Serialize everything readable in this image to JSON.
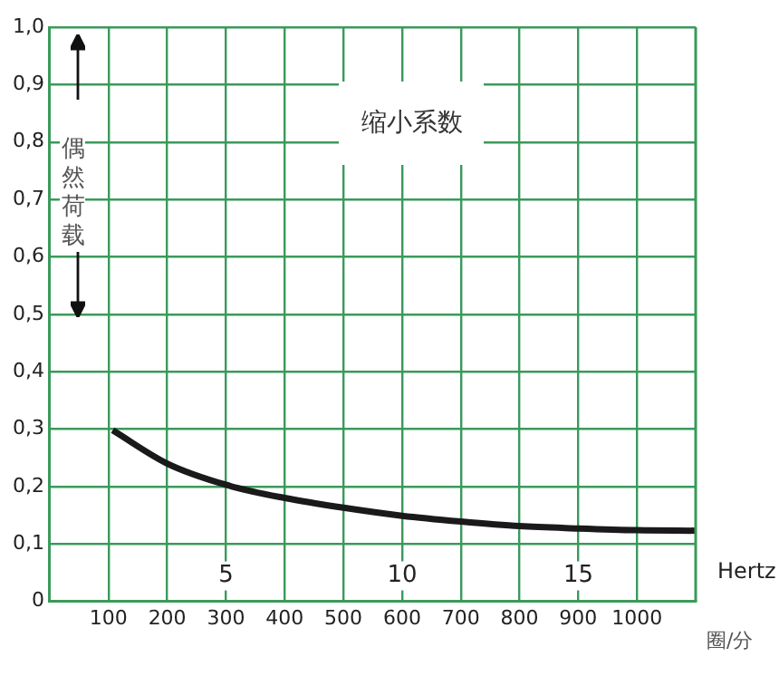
{
  "chart_data": {
    "type": "line",
    "title": "缩小系数",
    "ylabel": "偶然荷载",
    "xlabel": "圈/分",
    "x2label": "Hertz",
    "x": [
      107,
      200,
      300,
      400,
      500,
      600,
      700,
      800,
      900,
      1000,
      1100
    ],
    "series": [
      {
        "color": "#1a1a1a",
        "values": [
          0.298,
          0.24,
          0.203,
          0.18,
          0.163,
          0.149,
          0.139,
          0.131,
          0.127,
          0.124,
          0.123
        ]
      }
    ],
    "xlim": [
      0,
      1100
    ],
    "xticks": [
      100,
      200,
      300,
      400,
      500,
      600,
      700,
      800,
      900,
      1000
    ],
    "x2lim": [
      0,
      18.33
    ],
    "x2ticks": [
      5,
      10,
      15
    ],
    "ylim": [
      0,
      1.0
    ],
    "yticks": [
      0,
      {
        "value": 0.1,
        "label": "0,1"
      },
      {
        "value": 0.2,
        "label": "0,2"
      },
      {
        "value": 0.3,
        "label": "0,3"
      },
      {
        "value": 0.4,
        "label": "0,4"
      },
      {
        "value": 0.5,
        "label": "0,5"
      },
      {
        "value": 0.6,
        "label": "0,6"
      },
      {
        "value": 0.7,
        "label": "0,7"
      },
      {
        "value": 0.8,
        "label": "0,8"
      },
      {
        "value": 0.9,
        "label": "0,9"
      },
      {
        "value": 1.0,
        "label": "1,0"
      }
    ],
    "grid": true,
    "legend": false,
    "marker": "none",
    "line_style": "solid"
  }
}
